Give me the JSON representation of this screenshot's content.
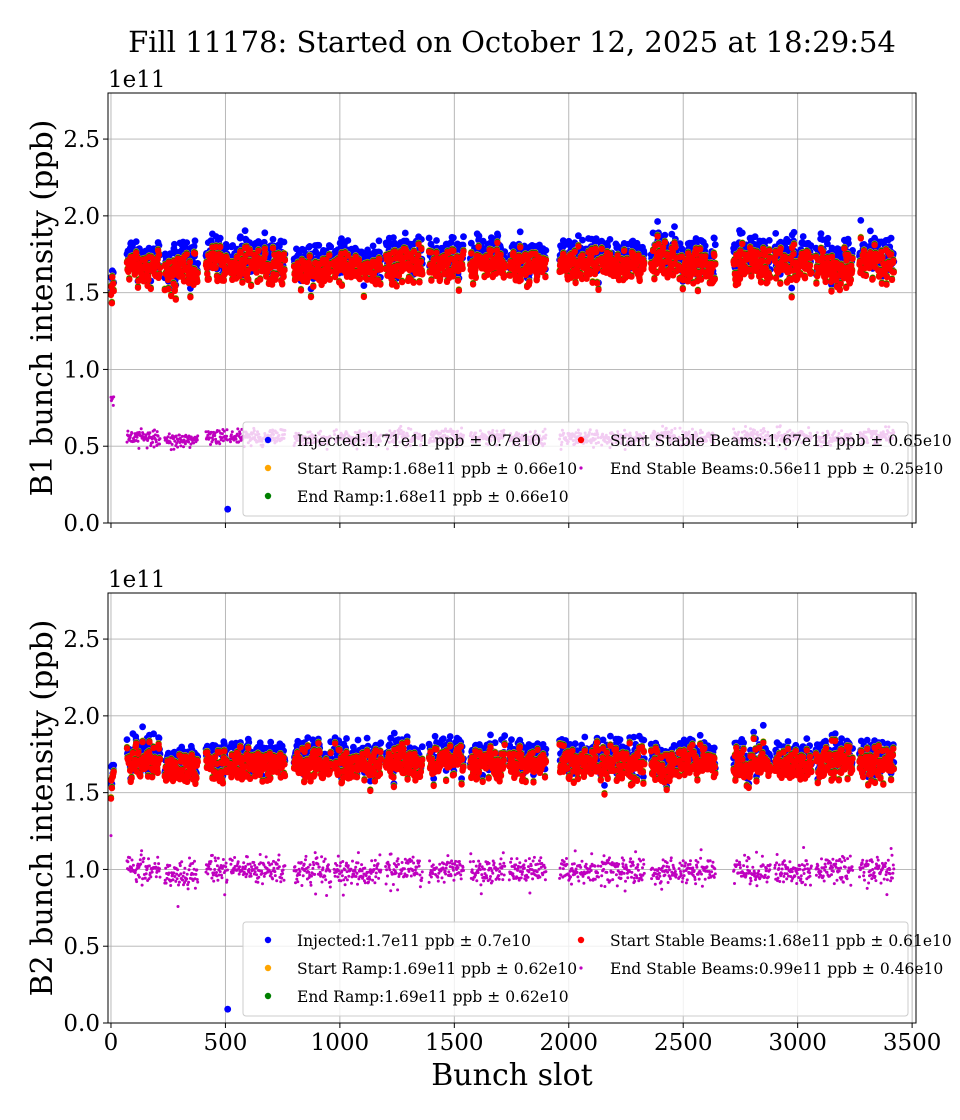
{
  "title": "Fill 11178: Started on October 12, 2025 at 18:29:54",
  "chart_data": [
    {
      "type": "scatter",
      "ylabel": "B1 bunch intensity (ppb)",
      "xlabel": "",
      "y_scale_label": "1e11",
      "xlim": [
        -13,
        3517
      ],
      "ylim": [
        0,
        2.8
      ],
      "xticks": [
        0,
        500,
        1000,
        1500,
        2000,
        2500,
        3000,
        3500
      ],
      "xtick_labels_visible": false,
      "yticks": [
        "0.0",
        "0.5",
        "1.0",
        "1.5",
        "2.0",
        "2.5"
      ],
      "grid": true,
      "legend_placement": "lower-right",
      "filled_slot_ranges": [
        [
          0,
          12
        ],
        [
          70,
          215
        ],
        [
          235,
          380
        ],
        [
          415,
          510
        ],
        [
          520,
          760
        ],
        [
          800,
          960
        ],
        [
          975,
          1180
        ],
        [
          1200,
          1360
        ],
        [
          1390,
          1540
        ],
        [
          1570,
          1720
        ],
        [
          1740,
          1900
        ],
        [
          1960,
          2130
        ],
        [
          2140,
          2330
        ],
        [
          2360,
          2470
        ],
        [
          2480,
          2640
        ],
        [
          2720,
          2880
        ],
        [
          2900,
          3060
        ],
        [
          3080,
          3240
        ],
        [
          3270,
          3420
        ]
      ],
      "series": [
        {
          "name": "Injected",
          "legend": "Injected:1.71e11 ppb ± 0.7e10",
          "mean": 1.71,
          "std": 0.07,
          "color": "#0000ff"
        },
        {
          "name": "Start Ramp",
          "legend": "Start Ramp:1.68e11 ppb ± 0.66e10",
          "mean": 1.68,
          "std": 0.066,
          "color": "#ffa500"
        },
        {
          "name": "End Ramp",
          "legend": "End Ramp:1.68e11 ppb ± 0.66e10",
          "mean": 1.68,
          "std": 0.066,
          "color": "#008000"
        },
        {
          "name": "Start Stable Beams",
          "legend": "Start Stable Beams:1.67e11 ppb ± 0.65e10",
          "mean": 1.67,
          "std": 0.065,
          "color": "#ff0000"
        },
        {
          "name": "End Stable Beams",
          "legend": "End Stable Beams:0.56e11 ppb ± 0.25e10",
          "mean": 0.56,
          "std": 0.025,
          "color": "#bf00bf"
        }
      ],
      "outliers": [
        {
          "series": "Injected",
          "x": 510,
          "y": 0.09
        }
      ]
    },
    {
      "type": "scatter",
      "ylabel": "B2 bunch intensity (ppb)",
      "xlabel": "Bunch slot",
      "y_scale_label": "1e11",
      "xlim": [
        -13,
        3517
      ],
      "ylim": [
        0,
        2.8
      ],
      "xticks": [
        0,
        500,
        1000,
        1500,
        2000,
        2500,
        3000,
        3500
      ],
      "xtick_labels": [
        "0",
        "500",
        "1000",
        "1500",
        "2000",
        "2500",
        "3000",
        "3500"
      ],
      "xtick_labels_visible": true,
      "yticks": [
        "0.0",
        "0.5",
        "1.0",
        "1.5",
        "2.0",
        "2.5"
      ],
      "grid": true,
      "legend_placement": "lower-right",
      "filled_slot_ranges": [
        [
          0,
          12
        ],
        [
          70,
          215
        ],
        [
          235,
          380
        ],
        [
          415,
          510
        ],
        [
          520,
          760
        ],
        [
          800,
          960
        ],
        [
          975,
          1180
        ],
        [
          1200,
          1360
        ],
        [
          1390,
          1540
        ],
        [
          1570,
          1720
        ],
        [
          1740,
          1900
        ],
        [
          1960,
          2130
        ],
        [
          2140,
          2330
        ],
        [
          2360,
          2470
        ],
        [
          2480,
          2640
        ],
        [
          2720,
          2880
        ],
        [
          2900,
          3060
        ],
        [
          3080,
          3240
        ],
        [
          3270,
          3420
        ]
      ],
      "series": [
        {
          "name": "Injected",
          "legend": "Injected:1.7e11 ppb ± 0.7e10",
          "mean": 1.7,
          "std": 0.07,
          "color": "#0000ff"
        },
        {
          "name": "Start Ramp",
          "legend": "Start Ramp:1.69e11 ppb ± 0.62e10",
          "mean": 1.69,
          "std": 0.062,
          "color": "#ffa500"
        },
        {
          "name": "End Ramp",
          "legend": "End Ramp:1.69e11 ppb ± 0.62e10",
          "mean": 1.69,
          "std": 0.062,
          "color": "#008000"
        },
        {
          "name": "Start Stable Beams",
          "legend": "Start Stable Beams:1.68e11 ppb ± 0.61e10",
          "mean": 1.68,
          "std": 0.061,
          "color": "#ff0000"
        },
        {
          "name": "End Stable Beams",
          "legend": "End Stable Beams:0.99e11 ppb ± 0.46e10",
          "mean": 0.99,
          "std": 0.046,
          "color": "#bf00bf"
        }
      ],
      "outliers": [
        {
          "series": "Injected",
          "x": 510,
          "y": 0.09
        }
      ]
    }
  ]
}
